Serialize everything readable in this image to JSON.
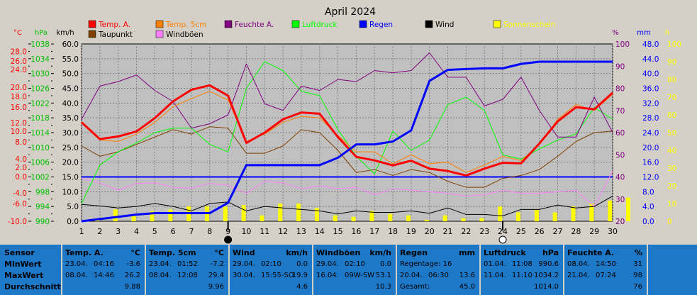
{
  "chart_data": {
    "type": "line",
    "title": "April 2024",
    "x": [
      1,
      2,
      3,
      4,
      5,
      6,
      7,
      8,
      9,
      10,
      11,
      12,
      13,
      14,
      15,
      16,
      17,
      18,
      19,
      20,
      21,
      22,
      23,
      24,
      25,
      26,
      27,
      28,
      29,
      30
    ],
    "axes": {
      "temp_c": {
        "label": "°C",
        "ticks": [
          "28.0",
          "26.0",
          "24.0",
          "20.0",
          "18.0",
          "16.0",
          "12.0",
          "10.0",
          "8.0",
          "4.0",
          "2.0",
          "0.0",
          "-4.0",
          "-6.0",
          "-10.0"
        ],
        "color": "#ff0000"
      },
      "hpa": {
        "label": "hPa",
        "ticks": [
          "1038",
          "1034",
          "1030",
          "1026",
          "1022",
          "1018",
          "1014",
          "1010",
          "1006",
          "1002",
          "998",
          "994",
          "990"
        ],
        "color": "#00c000"
      },
      "kmh": {
        "label": "km/h",
        "ticks": [
          "60.0",
          "55.0",
          "50.0",
          "45.0",
          "40.0",
          "35.0",
          "30.0",
          "25.0",
          "20.0",
          "15.0",
          "10.0",
          "5.0",
          "0.0"
        ],
        "ylim": [
          0,
          60
        ],
        "color": "#000000"
      },
      "percent": {
        "label": "%",
        "ticks": [
          "100",
          "90",
          "80",
          "70",
          "60",
          "50",
          "40",
          "30",
          "20"
        ],
        "color": "#800080"
      },
      "mm": {
        "label": "mm",
        "ticks": [
          "48.0",
          "44.0",
          "40.0",
          "36.0",
          "32.0",
          "28.0",
          "24.0",
          "20.0",
          "16.0",
          "12.0",
          "8.0",
          "4.0",
          "0.0"
        ],
        "color": "#0000ff"
      },
      "hours": {
        "label": "h",
        "ticks": [
          "100",
          "90",
          "80",
          "70",
          "60",
          "50",
          "40",
          "30",
          "20",
          "10",
          "0"
        ],
        "color": "#ffff00"
      }
    },
    "legend": [
      {
        "name": "Temp. A.",
        "color": "#ff0000"
      },
      {
        "name": "Temp. 5cm",
        "color": "#ff8000"
      },
      {
        "name": "Feuchte A.",
        "color": "#800080"
      },
      {
        "name": "Luftdruck",
        "color": "#00ff00"
      },
      {
        "name": "Regen",
        "color": "#0000ff"
      },
      {
        "name": "Wind",
        "color": "#000000"
      },
      {
        "name": "Sonnenschein",
        "color": "#ffff00"
      },
      {
        "name": "Taupunkt",
        "color": "#804000"
      },
      {
        "name": "Windböen",
        "color": "#ff80ff"
      }
    ],
    "series": [
      {
        "name": "Temp. A.",
        "color": "#ff0000",
        "width": 3,
        "values": [
          33.5,
          27.8,
          28.7,
          30.4,
          34.9,
          40.6,
          44.5,
          46.0,
          42.5,
          26.5,
          30.0,
          34.5,
          36.8,
          36.4,
          28.5,
          21.8,
          20.6,
          18.9,
          20.5,
          17.8,
          17.0,
          15.5,
          17.8,
          19.8,
          19.6,
          26.3,
          33.8,
          38.6,
          37.9,
          43.5
        ]
      },
      {
        "name": "Temp. 5cm",
        "color": "#ff8000",
        "width": 1,
        "values": [
          33.5,
          27.5,
          27.0,
          29.5,
          33.5,
          38.8,
          41.5,
          44.0,
          41.0,
          27.0,
          29.5,
          33.5,
          35.5,
          35.0,
          29.0,
          23.5,
          23.5,
          19.5,
          22.5,
          19.5,
          20.0,
          16.5,
          19.0,
          22.0,
          20.5,
          26.0,
          34.5,
          39.5,
          37.5,
          43.0
        ]
      },
      {
        "name": "Feuchte A.",
        "color": "#800080",
        "width": 1,
        "values": [
          66,
          81,
          83,
          86,
          79,
          74,
          62,
          64,
          68,
          91,
          73,
          70,
          81,
          79,
          84,
          83,
          88,
          87,
          88,
          96,
          85,
          85,
          72,
          75,
          85,
          70,
          58,
          58,
          76,
          60
        ]
      },
      {
        "name": "Luftdruck",
        "color": "#00ff00",
        "width": 1,
        "values": [
          6.0,
          19.0,
          23.5,
          26.5,
          30.0,
          31.5,
          31.5,
          26.0,
          23.5,
          45.0,
          54.0,
          51.0,
          44.0,
          42.5,
          31.0,
          22.0,
          16.0,
          30.5,
          24.0,
          27.5,
          39.5,
          42.0,
          37.5,
          22.5,
          21.0,
          24.5,
          27.5,
          29.5,
          38.5,
          34.5
        ]
      },
      {
        "name": "Regen",
        "color": "#0000ff",
        "width": 3,
        "values": [
          0,
          0.6,
          1.2,
          1.8,
          2.2,
          2.2,
          2.2,
          2.2,
          5.0,
          15.2,
          15.2,
          15.2,
          15.2,
          15.2,
          17.2,
          20.8,
          20.8,
          21.6,
          24.6,
          38.0,
          41.0,
          41.2,
          41.4,
          41.4,
          42.6,
          43.2,
          43.2,
          43.2,
          43.2,
          43.2
        ]
      },
      {
        "name": "Wind",
        "color": "#000000",
        "width": 1,
        "values": [
          5.7,
          5.2,
          4.5,
          5.0,
          6.0,
          5.0,
          3.5,
          6.0,
          6.5,
          3.5,
          5.0,
          4.5,
          4.0,
          3.5,
          2.5,
          3.5,
          3.0,
          3.0,
          3.5,
          2.7,
          4.5,
          2.3,
          2.3,
          1.8,
          4.0,
          4.0,
          5.5,
          4.5,
          5.0,
          8.5
        ]
      },
      {
        "name": "Windböen",
        "color": "#ff80ff",
        "width": 1,
        "values": [
          14.5,
          13.0,
          10.5,
          12.8,
          13.0,
          11.5,
          11.2,
          12.8,
          12.2,
          9.5,
          13.5,
          13.0,
          11.0,
          12.0,
          11.0,
          11.5,
          9.0,
          11.0,
          10.5,
          10.0,
          9.5,
          8.5,
          9.0,
          10.5,
          9.5,
          9.5,
          10.0,
          10.5,
          5.0,
          17.0
        ]
      },
      {
        "name": "Taupunkt",
        "color": "#804000",
        "width": 1,
        "values": [
          25.5,
          22.0,
          23.5,
          26.0,
          28.5,
          31.0,
          29.5,
          32.0,
          31.5,
          23.0,
          23.0,
          25.5,
          31.0,
          30.0,
          24.0,
          16.5,
          17.5,
          15.5,
          17.5,
          16.5,
          13.5,
          11.5,
          11.5,
          14.5,
          15.5,
          17.5,
          22.0,
          27.0,
          30.0,
          30.5
        ]
      },
      {
        "name": "Sonnenschein",
        "color": "#ffff00",
        "type": "bar",
        "values": [
          1.0,
          4.0,
          2.0,
          3.5,
          4.0,
          5.0,
          5.0,
          5.0,
          5.5,
          2.0,
          6.0,
          6.0,
          4.5,
          2.0,
          1.5,
          3.5,
          2.5,
          2.0,
          0.5,
          2.0,
          1.0,
          1.0,
          5.0,
          3.0,
          4.0,
          3.0,
          5.0,
          6.0,
          7.0,
          8.0
        ]
      }
    ],
    "markers": [
      {
        "x": 9,
        "symbol": "new-moon"
      },
      {
        "x": 24,
        "symbol": "full-moon"
      }
    ],
    "grid": true
  },
  "table": {
    "row_labels": [
      "Sensor",
      "MinWert",
      "MaxWert",
      "Durchschnitt"
    ],
    "columns": [
      {
        "title": "Temp. A.",
        "unit": "°C",
        "rows": [
          [
            "23.04.",
            "04:16",
            "-3.6"
          ],
          [
            "08.04.",
            "14:46",
            "26.2"
          ],
          [
            "",
            "",
            "9.88"
          ]
        ]
      },
      {
        "title": "Temp. 5cm",
        "unit": "°C",
        "rows": [
          [
            "23.04.",
            "01:52",
            "-7.2"
          ],
          [
            "08.04.",
            "12:08",
            "29.4"
          ],
          [
            "",
            "",
            "9.96"
          ]
        ]
      },
      {
        "title": "Wind",
        "unit": "km/h",
        "rows": [
          [
            "29.04.",
            "02:10",
            "0.0"
          ],
          [
            "30.04.",
            "15:55-SO",
            "19.9"
          ],
          [
            "",
            "",
            "4.6"
          ]
        ]
      },
      {
        "title": "Windböen",
        "unit": "km/h",
        "rows": [
          [
            "29.04.",
            "02:10",
            "0.0"
          ],
          [
            "16.04.",
            "09W-SW",
            "53.1"
          ],
          [
            "",
            "",
            "10.3"
          ]
        ]
      },
      {
        "title": "Regen",
        "unit": "mm",
        "rows": [
          [
            "Regentage: 16",
            "",
            ""
          ],
          [
            "20.04.",
            "06:30",
            "13.6"
          ],
          [
            "Gesamt:",
            "",
            "45.0"
          ]
        ]
      },
      {
        "title": "Luftdruck",
        "unit": "hPa",
        "rows": [
          [
            "01.04.",
            "11:08",
            "990.6"
          ],
          [
            "11.04.",
            "11:10",
            "1034.2"
          ],
          [
            "",
            "",
            "1014.0"
          ]
        ]
      },
      {
        "title": "Feuchte A.",
        "unit": "%",
        "rows": [
          [
            "08.04.",
            "14:50",
            "31"
          ],
          [
            "21.04.",
            "07:24",
            "98"
          ],
          [
            "",
            "",
            "76"
          ]
        ]
      }
    ]
  }
}
